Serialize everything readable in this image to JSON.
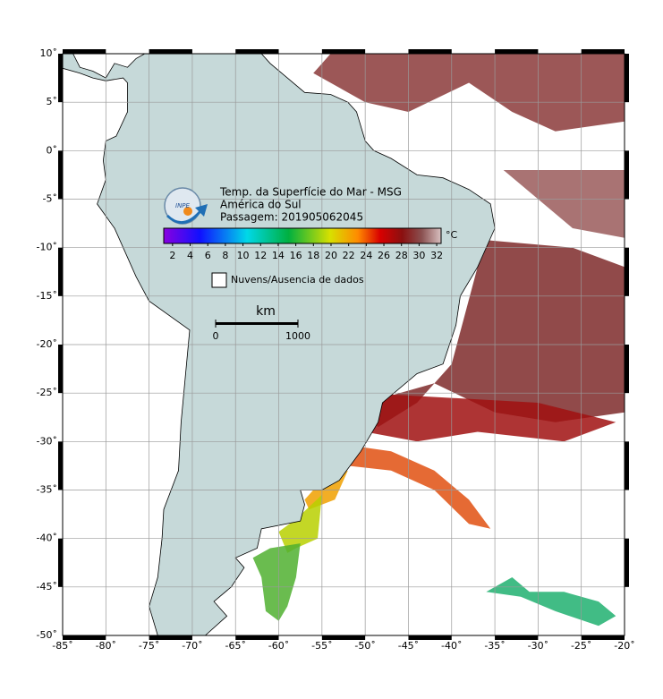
{
  "map": {
    "title": "Temp. da Superfície do Mar - MSG",
    "region": "América do Sul",
    "pass": "Passagem: 201905062045",
    "logo": "INPE",
    "xlim": [
      -85,
      -20
    ],
    "ylim": [
      -50,
      10
    ],
    "xticks": [
      {
        "value": -85,
        "label": "-85˚"
      },
      {
        "value": -80,
        "label": "-80˚"
      },
      {
        "value": -75,
        "label": "-75˚"
      },
      {
        "value": -70,
        "label": "-70˚"
      },
      {
        "value": -65,
        "label": "-65˚"
      },
      {
        "value": -60,
        "label": "-60˚"
      },
      {
        "value": -55,
        "label": "-55˚"
      },
      {
        "value": -50,
        "label": "-50˚"
      },
      {
        "value": -45,
        "label": "-45˚"
      },
      {
        "value": -40,
        "label": "-40˚"
      },
      {
        "value": -35,
        "label": "-35˚"
      },
      {
        "value": -30,
        "label": "-30˚"
      },
      {
        "value": -25,
        "label": "-25˚"
      },
      {
        "value": -20,
        "label": "-20˚"
      }
    ],
    "yticks": [
      {
        "value": 10,
        "label": "10˚"
      },
      {
        "value": 5,
        "label": "5˚"
      },
      {
        "value": 0,
        "label": "0˚"
      },
      {
        "value": -5,
        "label": "-5˚"
      },
      {
        "value": -10,
        "label": "-10˚"
      },
      {
        "value": -15,
        "label": "-15˚"
      },
      {
        "value": -20,
        "label": "-20˚"
      },
      {
        "value": -25,
        "label": "-25˚"
      },
      {
        "value": -30,
        "label": "-30˚"
      },
      {
        "value": -35,
        "label": "-35˚"
      },
      {
        "value": -40,
        "label": "-40˚"
      },
      {
        "value": -45,
        "label": "-45˚"
      },
      {
        "value": -50,
        "label": "-50˚"
      }
    ],
    "grid": true,
    "colorbar": {
      "lim": [
        1,
        32.5
      ],
      "ticks": [
        2,
        4,
        6,
        8,
        10,
        12,
        14,
        16,
        18,
        20,
        22,
        24,
        26,
        28,
        30,
        32
      ],
      "unit": "°C"
    },
    "legend": "Nuvens/Ausencia de dados",
    "scale": {
      "unit": "km",
      "ticks": [
        0,
        1000
      ]
    }
  }
}
